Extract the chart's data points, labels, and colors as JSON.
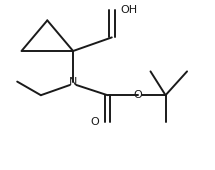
{
  "bg_color": "#ffffff",
  "line_color": "#1a1a1a",
  "line_width": 1.4,
  "figsize": [
    2.15,
    1.7
  ],
  "dpi": 100,
  "xlim": [
    0.0,
    1.0
  ],
  "ylim": [
    0.0,
    1.0
  ],
  "fs": 8.0
}
